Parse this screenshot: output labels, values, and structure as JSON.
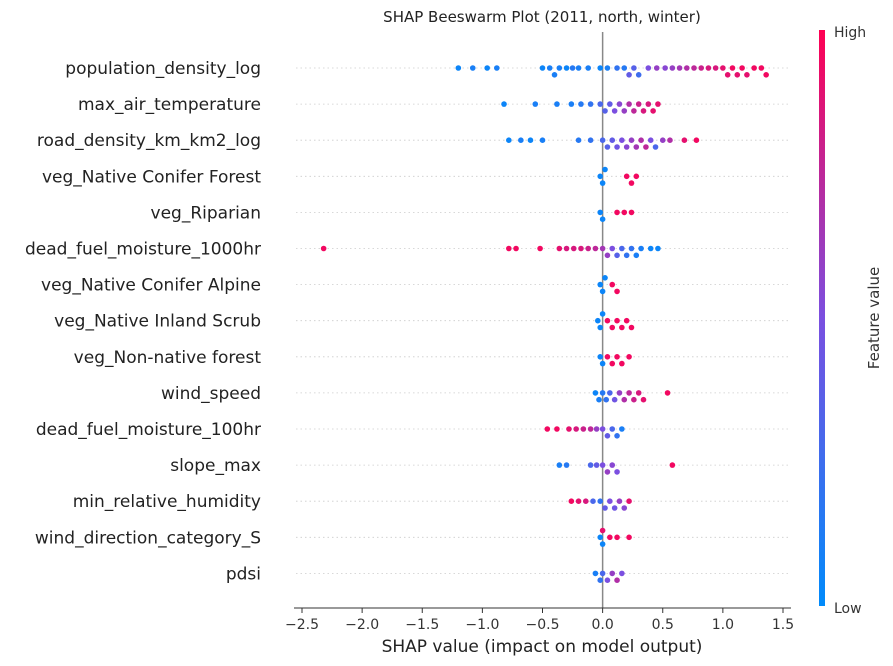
{
  "chart_data": {
    "type": "scatter",
    "title": "SHAP Beeswarm Plot (2011, north, winter)",
    "xlabel": "SHAP value (impact on model output)",
    "xlim": [
      -2.55,
      1.55
    ],
    "xticks": [
      -2.5,
      -2.0,
      -1.5,
      -1.0,
      -0.5,
      0.0,
      0.5,
      1.0,
      1.5
    ],
    "xtick_labels": [
      "−2.5",
      "−2.0",
      "−1.5",
      "−1.0",
      "−0.5",
      "0.0",
      "0.5",
      "1.0",
      "1.5"
    ],
    "colorbar": {
      "label": "Feature value",
      "high_label": "High",
      "low_label": "Low",
      "low_color": "#008bfb",
      "high_color": "#ff0052"
    },
    "features": [
      {
        "name": "population_density_log",
        "points": [
          [
            -1.2,
            0.05
          ],
          [
            -1.08,
            0.1
          ],
          [
            -0.96,
            0.05
          ],
          [
            -0.88,
            0.1
          ],
          [
            -0.5,
            0.05
          ],
          [
            -0.44,
            0.1
          ],
          [
            -0.4,
            0.1
          ],
          [
            -0.36,
            0.1
          ],
          [
            -0.3,
            0.05
          ],
          [
            -0.25,
            0.15
          ],
          [
            -0.2,
            0.1
          ],
          [
            -0.12,
            0.1
          ],
          [
            -0.02,
            0.05
          ],
          [
            0.04,
            0.1
          ],
          [
            0.12,
            0.2
          ],
          [
            0.18,
            0.15
          ],
          [
            0.22,
            0.4
          ],
          [
            0.26,
            0.35
          ],
          [
            0.3,
            0.25
          ],
          [
            0.38,
            0.5
          ],
          [
            0.45,
            0.6
          ],
          [
            0.52,
            0.55
          ],
          [
            0.58,
            0.6
          ],
          [
            0.64,
            0.65
          ],
          [
            0.7,
            0.7
          ],
          [
            0.76,
            0.75
          ],
          [
            0.82,
            0.8
          ],
          [
            0.88,
            0.85
          ],
          [
            0.94,
            0.85
          ],
          [
            1.0,
            0.9
          ],
          [
            1.04,
            0.9
          ],
          [
            1.08,
            0.95
          ],
          [
            1.12,
            0.9
          ],
          [
            1.16,
            0.95
          ],
          [
            1.2,
            0.9
          ],
          [
            1.26,
            0.95
          ],
          [
            1.32,
            0.95
          ],
          [
            1.36,
            0.95
          ]
        ]
      },
      {
        "name": "max_air_temperature",
        "points": [
          [
            -0.82,
            0.05
          ],
          [
            -0.56,
            0.1
          ],
          [
            -0.38,
            0.1
          ],
          [
            -0.26,
            0.1
          ],
          [
            -0.18,
            0.15
          ],
          [
            -0.1,
            0.2
          ],
          [
            -0.02,
            0.3
          ],
          [
            0.02,
            0.35
          ],
          [
            0.06,
            0.4
          ],
          [
            0.1,
            0.5
          ],
          [
            0.14,
            0.55
          ],
          [
            0.18,
            0.6
          ],
          [
            0.22,
            0.7
          ],
          [
            0.26,
            0.75
          ],
          [
            0.3,
            0.8
          ],
          [
            0.34,
            0.85
          ],
          [
            0.38,
            0.85
          ],
          [
            0.42,
            0.9
          ],
          [
            0.46,
            0.9
          ]
        ]
      },
      {
        "name": "road_density_km_km2_log",
        "points": [
          [
            -0.78,
            0.05
          ],
          [
            -0.68,
            0.1
          ],
          [
            -0.6,
            0.05
          ],
          [
            -0.5,
            0.1
          ],
          [
            -0.2,
            0.15
          ],
          [
            -0.1,
            0.2
          ],
          [
            0.0,
            0.3
          ],
          [
            0.04,
            0.35
          ],
          [
            0.08,
            0.4
          ],
          [
            0.12,
            0.45
          ],
          [
            0.16,
            0.5
          ],
          [
            0.2,
            0.55
          ],
          [
            0.24,
            0.6
          ],
          [
            0.28,
            0.65
          ],
          [
            0.32,
            0.7
          ],
          [
            0.36,
            0.75
          ],
          [
            0.4,
            0.5
          ],
          [
            0.44,
            0.3
          ],
          [
            0.5,
            0.6
          ],
          [
            0.56,
            0.7
          ],
          [
            0.68,
            0.9
          ],
          [
            0.78,
            0.95
          ]
        ]
      },
      {
        "name": "veg_Native Conifer Forest",
        "points": [
          [
            -0.02,
            0.05
          ],
          [
            0.0,
            0.05
          ],
          [
            0.02,
            0.05
          ],
          [
            0.2,
            0.95
          ],
          [
            0.24,
            0.95
          ],
          [
            0.28,
            0.95
          ]
        ]
      },
      {
        "name": "veg_Riparian",
        "points": [
          [
            -0.02,
            0.05
          ],
          [
            0.0,
            0.05
          ],
          [
            0.12,
            0.95
          ],
          [
            0.18,
            0.95
          ],
          [
            0.24,
            0.95
          ]
        ]
      },
      {
        "name": "dead_fuel_moisture_1000hr",
        "points": [
          [
            -2.32,
            0.95
          ],
          [
            -0.78,
            0.95
          ],
          [
            -0.72,
            0.95
          ],
          [
            -0.52,
            0.95
          ],
          [
            -0.36,
            0.9
          ],
          [
            -0.3,
            0.85
          ],
          [
            -0.24,
            0.85
          ],
          [
            -0.18,
            0.85
          ],
          [
            -0.12,
            0.8
          ],
          [
            -0.06,
            0.75
          ],
          [
            0.0,
            0.65
          ],
          [
            0.04,
            0.6
          ],
          [
            0.08,
            0.5
          ],
          [
            0.12,
            0.35
          ],
          [
            0.16,
            0.3
          ],
          [
            0.2,
            0.2
          ],
          [
            0.24,
            0.2
          ],
          [
            0.28,
            0.1
          ],
          [
            0.32,
            0.1
          ],
          [
            0.4,
            0.05
          ],
          [
            0.46,
            0.05
          ]
        ]
      },
      {
        "name": "veg_Native Conifer Alpine",
        "points": [
          [
            -0.02,
            0.05
          ],
          [
            0.0,
            0.05
          ],
          [
            0.02,
            0.05
          ],
          [
            0.08,
            0.95
          ],
          [
            0.12,
            0.95
          ]
        ]
      },
      {
        "name": "veg_Native Inland Scrub",
        "points": [
          [
            -0.04,
            0.05
          ],
          [
            -0.02,
            0.05
          ],
          [
            0.0,
            0.05
          ],
          [
            0.04,
            0.95
          ],
          [
            0.08,
            0.95
          ],
          [
            0.12,
            0.95
          ],
          [
            0.16,
            0.95
          ],
          [
            0.2,
            0.95
          ],
          [
            0.24,
            0.95
          ]
        ]
      },
      {
        "name": "veg_Non-native forest",
        "points": [
          [
            -0.02,
            0.05
          ],
          [
            0.0,
            0.05
          ],
          [
            0.04,
            0.95
          ],
          [
            0.08,
            0.95
          ],
          [
            0.12,
            0.95
          ],
          [
            0.16,
            0.95
          ],
          [
            0.22,
            0.95
          ]
        ]
      },
      {
        "name": "wind_speed",
        "points": [
          [
            -0.06,
            0.05
          ],
          [
            -0.03,
            0.1
          ],
          [
            0.0,
            0.15
          ],
          [
            0.03,
            0.2
          ],
          [
            0.06,
            0.3
          ],
          [
            0.1,
            0.45
          ],
          [
            0.14,
            0.6
          ],
          [
            0.18,
            0.7
          ],
          [
            0.22,
            0.75
          ],
          [
            0.26,
            0.8
          ],
          [
            0.3,
            0.85
          ],
          [
            0.34,
            0.9
          ],
          [
            0.54,
            0.95
          ]
        ]
      },
      {
        "name": "dead_fuel_moisture_100hr",
        "points": [
          [
            -0.46,
            0.95
          ],
          [
            -0.38,
            0.95
          ],
          [
            -0.28,
            0.9
          ],
          [
            -0.22,
            0.85
          ],
          [
            -0.16,
            0.8
          ],
          [
            -0.1,
            0.75
          ],
          [
            -0.05,
            0.6
          ],
          [
            0.0,
            0.5
          ],
          [
            0.04,
            0.4
          ],
          [
            0.08,
            0.3
          ],
          [
            0.12,
            0.2
          ],
          [
            0.16,
            0.1
          ]
        ]
      },
      {
        "name": "slope_max",
        "points": [
          [
            -0.36,
            0.1
          ],
          [
            -0.3,
            0.15
          ],
          [
            -0.1,
            0.3
          ],
          [
            -0.05,
            0.4
          ],
          [
            0.0,
            0.5
          ],
          [
            0.04,
            0.6
          ],
          [
            0.08,
            0.55
          ],
          [
            0.12,
            0.5
          ],
          [
            0.58,
            0.95
          ]
        ]
      },
      {
        "name": "min_relative_humidity",
        "points": [
          [
            -0.26,
            0.95
          ],
          [
            -0.2,
            0.9
          ],
          [
            -0.14,
            0.85
          ],
          [
            -0.08,
            0.3
          ],
          [
            -0.02,
            0.2
          ],
          [
            0.02,
            0.4
          ],
          [
            0.06,
            0.5
          ],
          [
            0.1,
            0.45
          ],
          [
            0.14,
            0.6
          ],
          [
            0.18,
            0.55
          ],
          [
            0.22,
            0.9
          ]
        ]
      },
      {
        "name": "wind_direction_category_S",
        "points": [
          [
            -0.02,
            0.05
          ],
          [
            0.0,
            0.05
          ],
          [
            0.0,
            0.9
          ],
          [
            0.06,
            0.95
          ],
          [
            0.12,
            0.95
          ],
          [
            0.22,
            0.95
          ]
        ]
      },
      {
        "name": "pdsi",
        "points": [
          [
            -0.06,
            0.1
          ],
          [
            -0.02,
            0.2
          ],
          [
            0.0,
            0.3
          ],
          [
            0.04,
            0.5
          ],
          [
            0.08,
            0.6
          ],
          [
            0.12,
            0.7
          ],
          [
            0.16,
            0.5
          ]
        ]
      }
    ]
  }
}
